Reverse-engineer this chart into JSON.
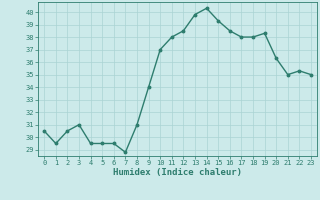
{
  "x": [
    0,
    1,
    2,
    3,
    4,
    5,
    6,
    7,
    8,
    9,
    10,
    11,
    12,
    13,
    14,
    15,
    16,
    17,
    18,
    19,
    20,
    21,
    22,
    23
  ],
  "y": [
    30.5,
    29.5,
    30.5,
    31.0,
    29.5,
    29.5,
    29.5,
    28.8,
    31.0,
    34.0,
    37.0,
    38.0,
    38.5,
    39.8,
    40.3,
    39.3,
    38.5,
    38.0,
    38.0,
    38.3,
    36.3,
    35.0,
    35.3,
    35.0
  ],
  "line_color": "#2e7d6e",
  "marker": "o",
  "markersize": 1.8,
  "linewidth": 1.0,
  "xlabel": "Humidex (Indice chaleur)",
  "ylabel_ticks": [
    29,
    30,
    31,
    32,
    33,
    34,
    35,
    36,
    37,
    38,
    39,
    40
  ],
  "ylim": [
    28.5,
    40.8
  ],
  "xlim": [
    -0.5,
    23.5
  ],
  "background_color": "#cceaea",
  "grid_color": "#aad4d4",
  "tick_fontsize": 5.0,
  "xlabel_fontsize": 6.5
}
